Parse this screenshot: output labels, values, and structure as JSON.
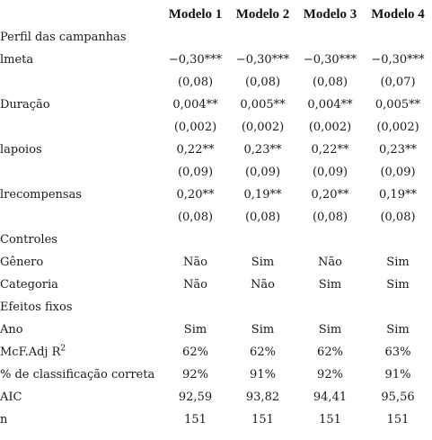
{
  "headers": [
    "Modelo 1",
    "Modelo 2",
    "Modelo 3",
    "Modelo 4"
  ],
  "sections": {
    "perfil": "Perfil das campanhas",
    "controles": "Controles",
    "efeitos": "Efeitos fixos"
  },
  "rows": {
    "lmeta": {
      "label": "lmeta",
      "vals": [
        "−0,30***",
        "−0,30***",
        "−0,30***",
        "−0,30***"
      ],
      "se": [
        "(0,08)",
        "(0,08)",
        "(0,08)",
        "(0,07)"
      ]
    },
    "duracao": {
      "label": "Duração",
      "vals": [
        "0,004**",
        "0,005**",
        "0,004**",
        "0,005**"
      ],
      "se": [
        "(0,002)",
        "(0,002)",
        "(0,002)",
        "(0,002)"
      ]
    },
    "lapoios": {
      "label": "lapoios",
      "vals": [
        "0,22**",
        "0,23**",
        "0,22**",
        "0,23**"
      ],
      "se": [
        "(0,09)",
        "(0,09)",
        "(0,09)",
        "(0,09)"
      ]
    },
    "lrecompensas": {
      "label": "lrecompensas",
      "vals": [
        "0,20**",
        "0,19**",
        "0,20**",
        "0,19**"
      ],
      "se": [
        "(0,08)",
        "(0,08)",
        "(0,08)",
        "(0,08)"
      ]
    },
    "genero": {
      "label": "Gênero",
      "vals": [
        "Não",
        "Sim",
        "Não",
        "Sim"
      ]
    },
    "categoria": {
      "label": "Categoria",
      "vals": [
        "Não",
        "Não",
        "Sim",
        "Sim"
      ]
    },
    "ano": {
      "label": "Ano",
      "vals": [
        "Sim",
        "Sim",
        "Sim",
        "Sim"
      ]
    },
    "mcf": {
      "label": "McF.Adj R",
      "sup": "2",
      "vals": [
        "62%",
        "62%",
        "62%",
        "63%"
      ]
    },
    "classif": {
      "label": "% de classificação correta",
      "vals": [
        "92%",
        "91%",
        "92%",
        "91%"
      ]
    },
    "aic": {
      "label": "AIC",
      "vals": [
        "92,59",
        "93,82",
        "94,41",
        "95,56"
      ]
    },
    "n": {
      "label": "n",
      "vals": [
        "151",
        "151",
        "151",
        "151"
      ]
    }
  }
}
